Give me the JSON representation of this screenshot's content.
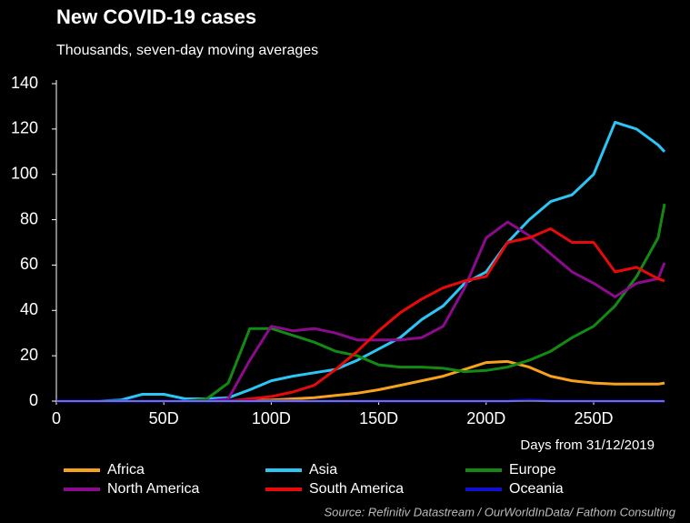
{
  "chart_data": {
    "type": "line",
    "title": "New COVID-19 cases",
    "subtitle": "Thousands, seven-day moving averages",
    "x_label": "Days from 31/12/2019",
    "source": "Source: Refinitiv Datastream  / OurWorldInData/ Fathom Consulting",
    "x": [
      0,
      10,
      20,
      30,
      40,
      50,
      60,
      70,
      80,
      90,
      100,
      110,
      120,
      130,
      140,
      150,
      160,
      170,
      180,
      190,
      200,
      210,
      220,
      230,
      240,
      250,
      260,
      270,
      280,
      283
    ],
    "xlim": [
      0,
      283
    ],
    "xticks": [
      0,
      {
        "value": 50,
        "label": "50D"
      },
      {
        "value": 100,
        "label": "100D"
      },
      {
        "value": 150,
        "label": "150D"
      },
      {
        "value": 200,
        "label": "200D"
      },
      {
        "value": 250,
        "label": "250D"
      }
    ],
    "ylim": [
      0,
      140
    ],
    "yticks": [
      0,
      20,
      40,
      60,
      80,
      100,
      120,
      140
    ],
    "series": [
      {
        "name": "Africa",
        "color": "#f7a21b",
        "values": [
          0,
          0,
          0,
          0,
          0,
          0,
          0,
          0,
          0,
          0.3,
          0.5,
          1,
          1.5,
          2.5,
          3.5,
          5,
          7,
          9,
          11,
          14,
          17,
          17.5,
          15,
          11,
          9,
          8,
          7.5,
          7.5,
          7.5,
          8
        ]
      },
      {
        "name": "Asia",
        "color": "#2ac6f5",
        "values": [
          0,
          0,
          0,
          0.5,
          3,
          3,
          1,
          1,
          1.5,
          5,
          9,
          11,
          12.5,
          14,
          18,
          23,
          28,
          36,
          42,
          52,
          57,
          70,
          80,
          88,
          91,
          100,
          123,
          120,
          113,
          110
        ]
      },
      {
        "name": "Europe",
        "color": "#138a13",
        "values": [
          0,
          0,
          0,
          0,
          0,
          0,
          0,
          1,
          8,
          32,
          32,
          29,
          26,
          22,
          20,
          16,
          15,
          15,
          14.5,
          13,
          13.5,
          15,
          18,
          22,
          28,
          33,
          42,
          55,
          72,
          87
        ]
      },
      {
        "name": "North America",
        "color": "#8c0a8c",
        "values": [
          0,
          0,
          0,
          0,
          0,
          0,
          0,
          0,
          1,
          18,
          33,
          31,
          32,
          30,
          27,
          27,
          27,
          28,
          33,
          50,
          72,
          79,
          73,
          65,
          57,
          52,
          46,
          52,
          54,
          61
        ]
      },
      {
        "name": "South America",
        "color": "#e80a0a",
        "values": [
          0,
          0,
          0,
          0,
          0,
          0,
          0,
          0,
          0,
          1,
          2,
          4,
          7,
          14,
          22,
          31,
          39,
          45,
          50,
          53,
          55,
          70,
          72,
          76,
          70,
          70,
          57,
          59,
          54,
          53
        ]
      },
      {
        "name": "Oceania",
        "color": "#1010d0",
        "values": [
          0,
          0,
          0,
          0,
          0,
          0,
          0,
          0,
          0,
          0,
          0,
          0,
          0,
          0,
          0,
          0,
          0,
          0,
          0,
          0,
          0,
          0,
          0.5,
          0,
          0,
          0,
          0,
          0,
          0,
          0
        ]
      }
    ]
  }
}
